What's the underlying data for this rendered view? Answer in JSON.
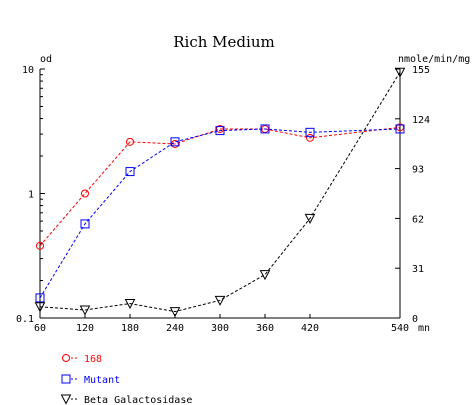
{
  "chart_data": {
    "type": "line",
    "title": "Rich Medium",
    "xlabel_unit": "mn",
    "ylabel_left_unit": "od",
    "ylabel_right_unit": "nmole/min/mg",
    "x_ticks": [
      60,
      120,
      180,
      240,
      300,
      360,
      420,
      540
    ],
    "xlim": [
      60,
      540
    ],
    "y_left": {
      "scale": "log",
      "ylim": [
        0.1,
        10
      ],
      "ticks": [
        0.1,
        1,
        10
      ],
      "tick_labels": [
        "0.1",
        "1",
        "10"
      ]
    },
    "y_right": {
      "scale": "linear",
      "ylim": [
        0,
        155
      ],
      "ticks": [
        0,
        31,
        62,
        93,
        124,
        155
      ],
      "tick_labels": [
        "0",
        "31",
        "62",
        "93",
        "124",
        "155"
      ]
    },
    "grid": false,
    "legend_position": "bottom-left",
    "series": [
      {
        "name": "168",
        "color": "#ff0000",
        "marker": "circle",
        "axis": "left",
        "x": [
          60,
          120,
          180,
          240,
          300,
          360,
          420,
          540
        ],
        "values": [
          0.38,
          1.0,
          2.6,
          2.5,
          3.3,
          3.3,
          2.8,
          3.4
        ]
      },
      {
        "name": "Mutant",
        "color": "#0000ff",
        "marker": "square",
        "axis": "left",
        "x": [
          60,
          120,
          180,
          240,
          300,
          360,
          420,
          540
        ],
        "values": [
          0.145,
          0.57,
          1.5,
          2.6,
          3.2,
          3.3,
          3.1,
          3.3
        ]
      },
      {
        "name": "Beta Galactosidase",
        "color": "#000000",
        "marker": "triangle-down",
        "axis": "right",
        "x": [
          60,
          120,
          180,
          240,
          300,
          360,
          420,
          540
        ],
        "values": [
          7,
          5,
          9,
          4,
          11,
          27,
          62,
          153
        ]
      }
    ]
  }
}
